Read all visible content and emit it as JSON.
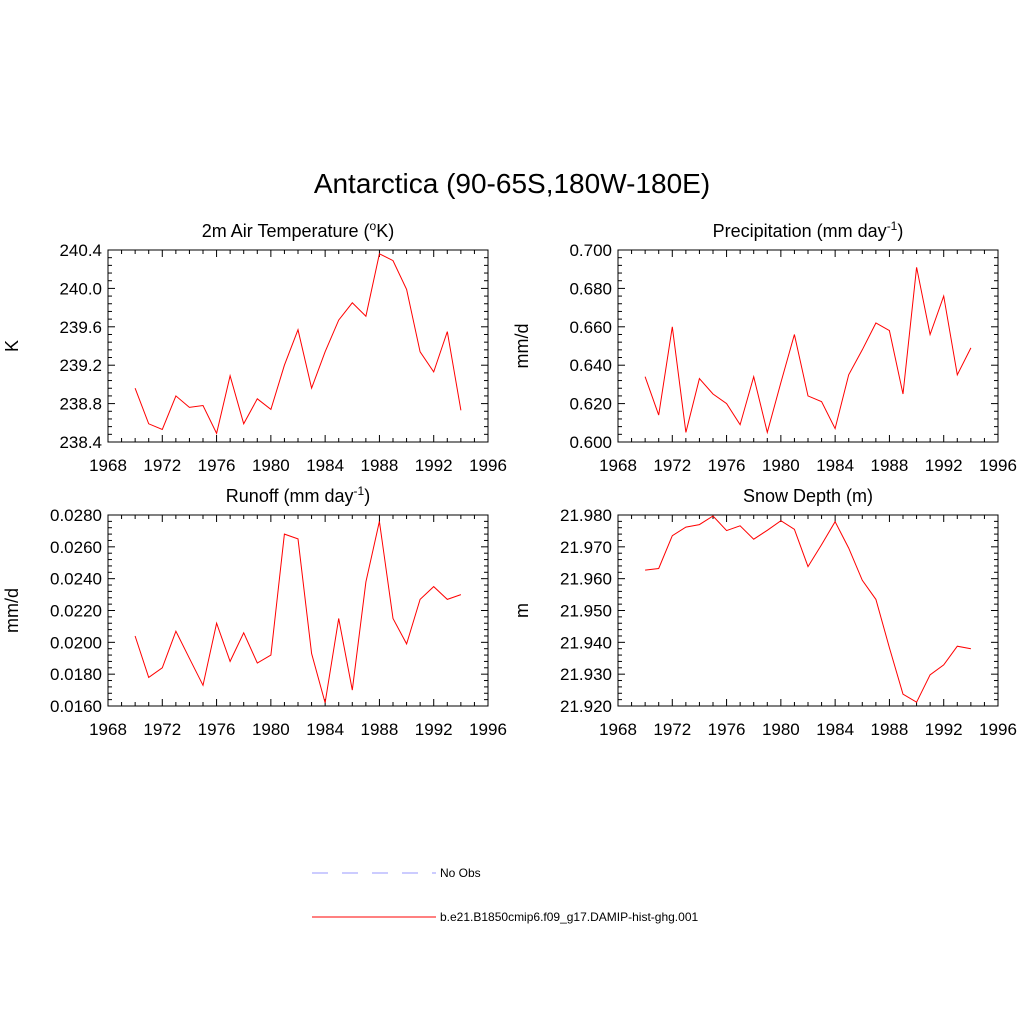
{
  "title": "Antarctica (90-65S,180W-180E)",
  "colors": {
    "model": "#ff0000",
    "obs": "#9999ff",
    "axis": "#000000"
  },
  "legend": [
    {
      "label": "No Obs",
      "color": "#9999ff",
      "dash": true
    },
    {
      "label": "b.e21.B1850cmip6.f09_g17.DAMIP-hist-ghg.001",
      "color": "#ff0000",
      "dash": false
    }
  ],
  "chart_data": [
    {
      "type": "line",
      "title_main": "2m Air Temperature (",
      "title_sup": "o",
      "title_end": "K)",
      "ylabel": "K",
      "xlim": [
        1968,
        1996
      ],
      "xticks": [
        "1968",
        "1972",
        "1976",
        "1980",
        "1984",
        "1988",
        "1992",
        "1996"
      ],
      "ylim": [
        238.4,
        240.4
      ],
      "yticks": [
        "238.4",
        "238.8",
        "239.2",
        "239.6",
        "240.0",
        "240.4"
      ],
      "x": [
        1970,
        1971,
        1972,
        1973,
        1974,
        1975,
        1976,
        1977,
        1978,
        1979,
        1980,
        1981,
        1982,
        1983,
        1984,
        1985,
        1986,
        1987,
        1988,
        1989,
        1990,
        1991,
        1992,
        1993,
        1994
      ],
      "series": [
        {
          "values": [
            238.96,
            238.59,
            238.53,
            238.88,
            238.76,
            238.78,
            238.49,
            239.09,
            238.59,
            238.85,
            238.74,
            239.2,
            239.57,
            238.96,
            239.34,
            239.67,
            239.85,
            239.71,
            240.36,
            240.29,
            239.99,
            239.34,
            239.13,
            239.55,
            238.73
          ]
        }
      ]
    },
    {
      "type": "line",
      "title_main": "Precipitation (mm day",
      "title_sup": "-1",
      "title_end": ")",
      "ylabel": "mm/d",
      "xlim": [
        1968,
        1996
      ],
      "xticks": [
        "1968",
        "1972",
        "1976",
        "1980",
        "1984",
        "1988",
        "1992",
        "1996"
      ],
      "ylim": [
        0.6,
        0.7
      ],
      "yticks": [
        "0.600",
        "0.620",
        "0.640",
        "0.660",
        "0.680",
        "0.700"
      ],
      "x": [
        1970,
        1971,
        1972,
        1973,
        1974,
        1975,
        1976,
        1977,
        1978,
        1979,
        1980,
        1981,
        1982,
        1983,
        1984,
        1985,
        1986,
        1987,
        1988,
        1989,
        1990,
        1991,
        1992,
        1993,
        1994
      ],
      "series": [
        {
          "values": [
            0.634,
            0.614,
            0.66,
            0.605,
            0.633,
            0.625,
            0.62,
            0.609,
            0.634,
            0.605,
            0.631,
            0.656,
            0.624,
            0.621,
            0.607,
            0.635,
            0.648,
            0.662,
            0.658,
            0.625,
            0.691,
            0.656,
            0.676,
            0.635,
            0.649
          ]
        }
      ]
    },
    {
      "type": "line",
      "title_main": "Runoff (mm day",
      "title_sup": "-1",
      "title_end": ")",
      "ylabel": "mm/d",
      "xlim": [
        1968,
        1996
      ],
      "xticks": [
        "1968",
        "1972",
        "1976",
        "1980",
        "1984",
        "1988",
        "1992",
        "1996"
      ],
      "ylim": [
        0.016,
        0.028
      ],
      "yticks": [
        "0.0160",
        "0.0180",
        "0.0200",
        "0.0220",
        "0.0240",
        "0.0260",
        "0.0280"
      ],
      "x": [
        1970,
        1971,
        1972,
        1973,
        1974,
        1975,
        1976,
        1977,
        1978,
        1979,
        1980,
        1981,
        1982,
        1983,
        1984,
        1985,
        1986,
        1987,
        1988,
        1989,
        1990,
        1991,
        1992,
        1993,
        1994
      ],
      "series": [
        {
          "values": [
            0.0204,
            0.0178,
            0.0184,
            0.0207,
            0.019,
            0.0173,
            0.0212,
            0.0188,
            0.0206,
            0.0187,
            0.0192,
            0.0268,
            0.0265,
            0.0193,
            0.0162,
            0.0215,
            0.017,
            0.0238,
            0.0276,
            0.0215,
            0.0199,
            0.0227,
            0.0235,
            0.0227,
            0.023
          ]
        }
      ]
    },
    {
      "type": "line",
      "title_main": "Snow Depth (m)",
      "title_sup": "",
      "title_end": "",
      "ylabel": "m",
      "xlim": [
        1968,
        1996
      ],
      "xticks": [
        "1968",
        "1972",
        "1976",
        "1980",
        "1984",
        "1988",
        "1992",
        "1996"
      ],
      "ylim": [
        21.92,
        21.98
      ],
      "yticks": [
        "21.920",
        "21.930",
        "21.940",
        "21.950",
        "21.960",
        "21.970",
        "21.980"
      ],
      "x": [
        1970,
        1971,
        1972,
        1973,
        1974,
        1975,
        1976,
        1977,
        1978,
        1979,
        1980,
        1981,
        1982,
        1983,
        1984,
        1985,
        1986,
        1987,
        1988,
        1989,
        1990,
        1991,
        1992,
        1993,
        1994
      ],
      "series": [
        {
          "values": [
            21.9627,
            21.9632,
            21.9735,
            21.9762,
            21.977,
            21.9797,
            21.9751,
            21.9766,
            21.9724,
            21.9752,
            21.9782,
            21.9755,
            21.9638,
            21.9707,
            21.9779,
            21.9696,
            21.9595,
            21.9535,
            21.9383,
            21.9237,
            21.9212,
            21.9298,
            21.9329,
            21.9388,
            21.938
          ]
        }
      ]
    }
  ]
}
